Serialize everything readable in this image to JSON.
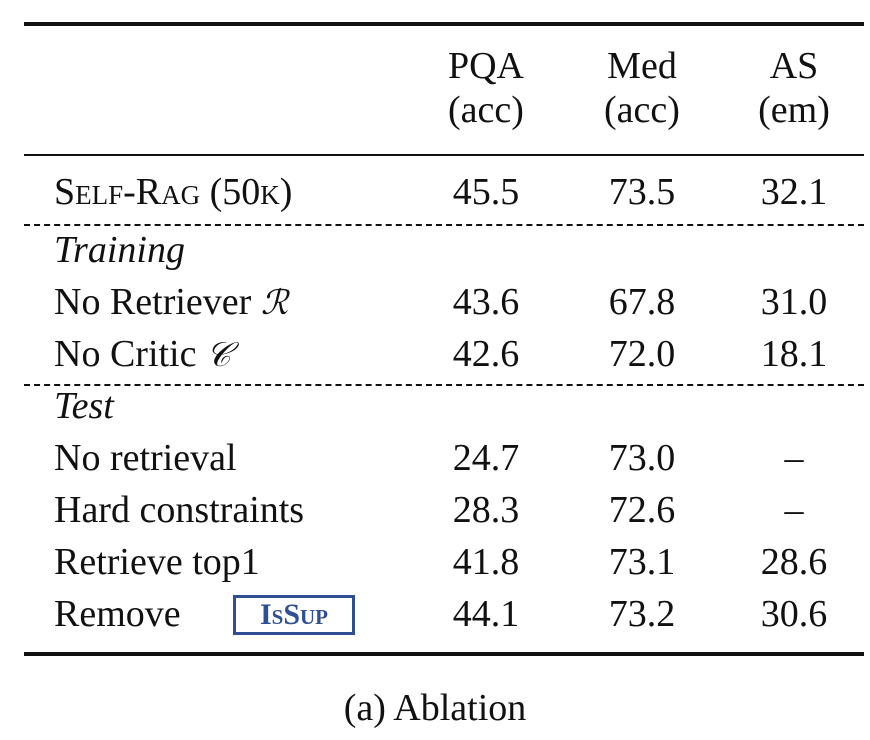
{
  "table": {
    "headers": [
      {
        "line1": "PQA",
        "line2": "(acc)"
      },
      {
        "line1": "Med",
        "line2": "(acc)"
      },
      {
        "line1": "AS",
        "line2": "(em)"
      }
    ],
    "main_row": {
      "label": "Self-Rag (50k)",
      "values": [
        "45.5",
        "73.5",
        "32.1"
      ]
    },
    "sections": [
      {
        "title": "Training",
        "rows": [
          {
            "label": "No Retriever",
            "symbol": "ℛ",
            "values": [
              "43.6",
              "67.8",
              "31.0"
            ]
          },
          {
            "label": "No Critic",
            "symbol": "𝒞",
            "values": [
              "42.6",
              "72.0",
              "18.1"
            ]
          }
        ]
      },
      {
        "title": "Test",
        "rows": [
          {
            "label": "No retrieval",
            "values": [
              "24.7",
              "73.0",
              "–"
            ]
          },
          {
            "label": "Hard constraints",
            "values": [
              "28.3",
              "72.6",
              "–"
            ]
          },
          {
            "label": "Retrieve top1",
            "values": [
              "41.8",
              "73.1",
              "28.6"
            ]
          },
          {
            "label": "Remove",
            "token": "IsSup",
            "values": [
              "44.1",
              "73.2",
              "30.6"
            ]
          }
        ]
      }
    ]
  },
  "caption": "(a) Ablation",
  "colors": {
    "text": "#111111",
    "token": "#2f4f95"
  }
}
